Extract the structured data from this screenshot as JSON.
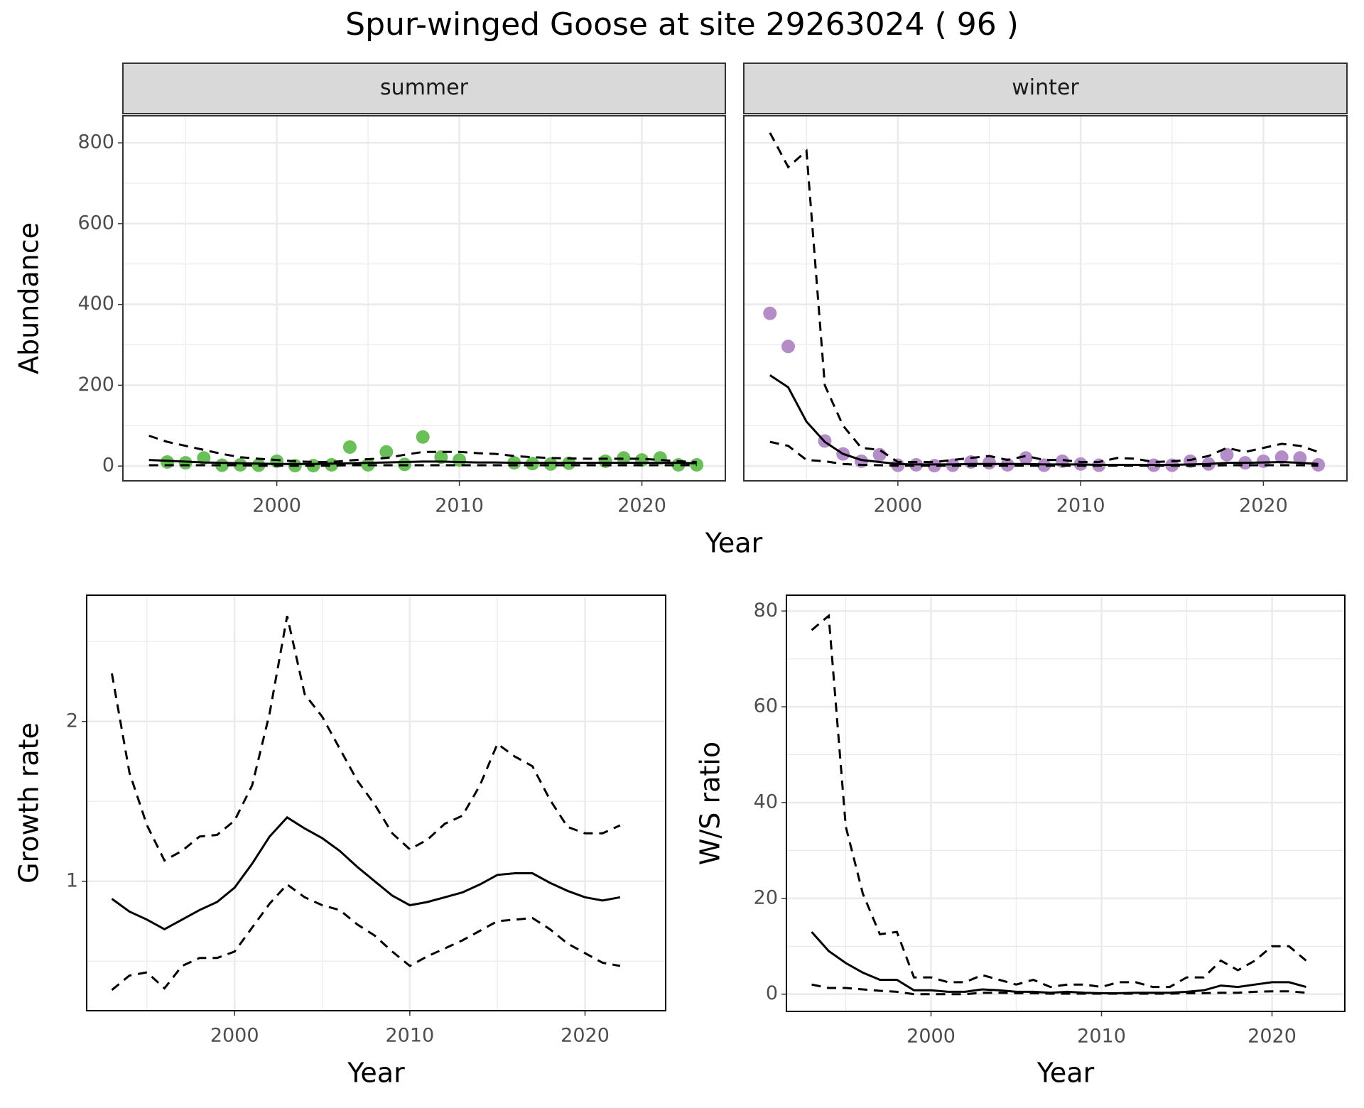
{
  "title": "Spur-winged Goose at site 29263024 ( 96 )",
  "shared_xlabel": "Year",
  "chart_data": [
    {
      "type": "line",
      "strip": "summer",
      "ylabel": "Abundance",
      "x": [
        1993,
        1994,
        1995,
        1996,
        1997,
        1998,
        1999,
        2000,
        2001,
        2002,
        2003,
        2004,
        2005,
        2006,
        2007,
        2008,
        2009,
        2010,
        2011,
        2012,
        2013,
        2014,
        2015,
        2016,
        2017,
        2018,
        2019,
        2020,
        2021,
        2022,
        2023
      ],
      "xlim": [
        1991.57,
        2024.57
      ],
      "xticks": [
        2000,
        2010,
        2020
      ],
      "xminor": [
        1995,
        2005,
        2015
      ],
      "ylim": [
        -36.6,
        867
      ],
      "yticks": [
        0,
        200,
        400,
        600,
        800
      ],
      "yminor": [
        100,
        300,
        500,
        700
      ],
      "show_ytick_labels": true,
      "series": [
        {
          "style": "points",
          "color": "#6abf59",
          "values": [
            null,
            10,
            8,
            20,
            2,
            3,
            2,
            12,
            1,
            1,
            3,
            47,
            3,
            35,
            4,
            72,
            22,
            15,
            null,
            null,
            8,
            6,
            5,
            7,
            null,
            12,
            20,
            15,
            20,
            3,
            3
          ]
        },
        {
          "style": "solid",
          "color": "#000000",
          "values": [
            15,
            13,
            11,
            9,
            8,
            7,
            6,
            5,
            5,
            5,
            6,
            7,
            8,
            9,
            10,
            11,
            11,
            10,
            9,
            9,
            8,
            8,
            8,
            8,
            8,
            8,
            8,
            8,
            8,
            8,
            7
          ]
        },
        {
          "style": "dashed",
          "color": "#000000",
          "values": [
            75,
            60,
            50,
            40,
            30,
            22,
            18,
            15,
            12,
            10,
            10,
            14,
            17,
            20,
            28,
            35,
            35,
            35,
            32,
            30,
            25,
            22,
            20,
            19,
            18,
            18,
            18,
            18,
            15,
            12,
            10
          ]
        },
        {
          "style": "dashed",
          "color": "#000000",
          "values": [
            2,
            2,
            2,
            2,
            2,
            2,
            1,
            1,
            1,
            1,
            1,
            2,
            2,
            2,
            2,
            2,
            2,
            2,
            2,
            2,
            2,
            2,
            2,
            2,
            2,
            2,
            2,
            2,
            2,
            2,
            2
          ]
        }
      ]
    },
    {
      "type": "line",
      "strip": "winter",
      "x": [
        1993,
        1994,
        1995,
        1996,
        1997,
        1998,
        1999,
        2000,
        2001,
        2002,
        2003,
        2004,
        2005,
        2006,
        2007,
        2008,
        2009,
        2010,
        2011,
        2012,
        2013,
        2014,
        2015,
        2016,
        2017,
        2018,
        2019,
        2020,
        2021,
        2022,
        2023
      ],
      "xlim": [
        1991.57,
        2024.57
      ],
      "xticks": [
        2000,
        2010,
        2020
      ],
      "xminor": [
        1995,
        2005,
        2015
      ],
      "ylim": [
        -36.6,
        867
      ],
      "yticks": [
        0,
        200,
        400,
        600,
        800
      ],
      "yminor": [
        100,
        300,
        500,
        700
      ],
      "show_ytick_labels": false,
      "series": [
        {
          "style": "points",
          "color": "#b48cc8",
          "values": [
            378,
            296,
            null,
            62,
            30,
            12,
            28,
            2,
            3,
            1,
            2,
            10,
            8,
            3,
            20,
            2,
            12,
            5,
            2,
            null,
            null,
            2,
            2,
            12,
            5,
            28,
            8,
            12,
            22,
            20,
            3
          ]
        },
        {
          "style": "solid",
          "color": "#000000",
          "values": [
            225,
            195,
            110,
            60,
            30,
            15,
            10,
            5,
            4,
            4,
            4,
            5,
            5,
            5,
            5,
            4,
            4,
            4,
            3,
            3,
            3,
            3,
            3,
            4,
            5,
            8,
            8,
            9,
            10,
            8,
            5
          ]
        },
        {
          "style": "dashed",
          "color": "#000000",
          "values": [
            825,
            740,
            780,
            200,
            100,
            45,
            40,
            10,
            10,
            10,
            15,
            20,
            25,
            15,
            25,
            15,
            15,
            10,
            10,
            20,
            18,
            10,
            12,
            15,
            25,
            45,
            35,
            45,
            55,
            50,
            35
          ]
        },
        {
          "style": "dashed",
          "color": "#000000",
          "values": [
            60,
            50,
            15,
            12,
            5,
            3,
            2,
            1,
            1,
            1,
            1,
            1,
            1,
            1,
            1,
            1,
            1,
            1,
            1,
            1,
            1,
            1,
            1,
            1,
            1,
            2,
            2,
            2,
            2,
            2,
            1
          ]
        }
      ]
    },
    {
      "type": "line",
      "ylabel": "Growth rate",
      "xlabel": "Year",
      "x": [
        1993,
        1994,
        1995,
        1996,
        1997,
        1998,
        1999,
        2000,
        2001,
        2002,
        2003,
        2004,
        2005,
        2006,
        2007,
        2008,
        2009,
        2010,
        2011,
        2012,
        2013,
        2014,
        2015,
        2016,
        2017,
        2018,
        2019,
        2020,
        2021,
        2022
      ],
      "xlim": [
        1991.56,
        2024.6
      ],
      "xticks": [
        2000,
        2010,
        2020
      ],
      "xminor": [
        1995,
        2005,
        2015
      ],
      "ylim": [
        0.19,
        2.79
      ],
      "yticks": [
        1,
        2
      ],
      "yminor": [
        0.5,
        1.5,
        2.5
      ],
      "show_ytick_labels": true,
      "series": [
        {
          "style": "solid",
          "color": "#000000",
          "values": [
            0.89,
            0.81,
            0.76,
            0.7,
            0.76,
            0.82,
            0.87,
            0.96,
            1.11,
            1.28,
            1.4,
            1.33,
            1.27,
            1.19,
            1.09,
            1.0,
            0.91,
            0.85,
            0.87,
            0.9,
            0.93,
            0.98,
            1.04,
            1.05,
            1.05,
            0.99,
            0.94,
            0.9,
            0.88,
            0.9
          ]
        },
        {
          "style": "dashed",
          "color": "#000000",
          "values": [
            2.3,
            1.68,
            1.35,
            1.13,
            1.19,
            1.28,
            1.29,
            1.38,
            1.6,
            2.05,
            2.66,
            2.17,
            2.03,
            1.83,
            1.63,
            1.48,
            1.3,
            1.2,
            1.26,
            1.36,
            1.41,
            1.6,
            1.86,
            1.78,
            1.72,
            1.51,
            1.34,
            1.3,
            1.3,
            1.35
          ]
        },
        {
          "style": "dashed",
          "color": "#000000",
          "values": [
            0.32,
            0.41,
            0.43,
            0.33,
            0.47,
            0.52,
            0.52,
            0.56,
            0.71,
            0.86,
            0.98,
            0.9,
            0.85,
            0.82,
            0.73,
            0.66,
            0.56,
            0.47,
            0.53,
            0.58,
            0.63,
            0.69,
            0.75,
            0.76,
            0.77,
            0.7,
            0.61,
            0.55,
            0.49,
            0.47
          ]
        }
      ]
    },
    {
      "type": "line",
      "ylabel": "W/S ratio",
      "xlabel": "Year",
      "x": [
        1993,
        1994,
        1995,
        1996,
        1997,
        1998,
        1999,
        2000,
        2001,
        2002,
        2003,
        2004,
        2005,
        2006,
        2007,
        2008,
        2009,
        2010,
        2011,
        2012,
        2013,
        2014,
        2015,
        2016,
        2017,
        2018,
        2019,
        2020,
        2021,
        2022
      ],
      "xlim": [
        1991.52,
        2024.27
      ],
      "xticks": [
        2000,
        2010,
        2020
      ],
      "xminor": [
        1995,
        2005,
        2015
      ],
      "ylim": [
        -3.6,
        83.3
      ],
      "yticks": [
        0,
        20,
        40,
        60,
        80
      ],
      "yminor": [
        10,
        30,
        50,
        70
      ],
      "show_ytick_labels": true,
      "series": [
        {
          "style": "solid",
          "color": "#000000",
          "values": [
            13,
            9,
            6.5,
            4.5,
            3,
            3,
            0.8,
            0.8,
            0.5,
            0.5,
            1,
            0.8,
            0.5,
            0.5,
            0.3,
            0.5,
            0.3,
            0.2,
            0.2,
            0.3,
            0.3,
            0.3,
            0.5,
            0.8,
            1.8,
            1.5,
            2,
            2.5,
            2.5,
            1.5
          ]
        },
        {
          "style": "dashed",
          "color": "#000000",
          "values": [
            76,
            79,
            35,
            21,
            12.5,
            13,
            3.5,
            3.5,
            2.5,
            2.5,
            4,
            3,
            2,
            3,
            1.5,
            2,
            2,
            1.5,
            2.5,
            2.5,
            1.5,
            1.5,
            3.5,
            3.5,
            7,
            5,
            7,
            10,
            10,
            7
          ]
        },
        {
          "style": "dashed",
          "color": "#000000",
          "values": [
            2,
            1.3,
            1.3,
            1,
            0.7,
            0.5,
            0,
            0,
            0,
            0,
            0.3,
            0.3,
            0.2,
            0.2,
            0.1,
            0.1,
            0.1,
            0.1,
            0.1,
            0.1,
            0.1,
            0.1,
            0.2,
            0.2,
            0.3,
            0.3,
            0.5,
            0.6,
            0.6,
            0.3
          ]
        }
      ]
    }
  ]
}
